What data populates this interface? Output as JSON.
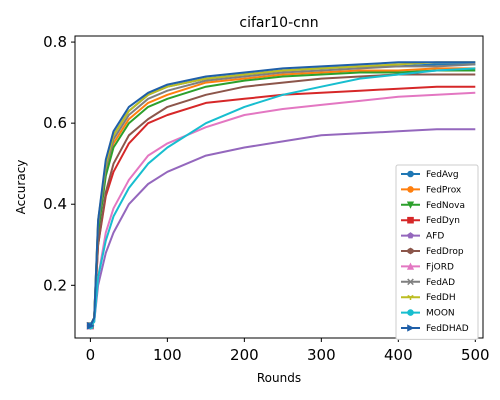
{
  "chart_data": {
    "type": "line",
    "title": "cifar10-cnn",
    "xlabel": "Rounds",
    "ylabel": "Accuracy",
    "xlim": [
      -20,
      510
    ],
    "ylim": [
      0.07,
      0.815
    ],
    "x_ticks": [
      0,
      100,
      200,
      300,
      400,
      500
    ],
    "y_ticks": [
      0.2,
      0.4,
      0.6,
      0.8
    ],
    "grid": false,
    "legend_position": "lower-right",
    "series": [
      {
        "name": "FedAvg",
        "color": "#1f77b4",
        "marker": "circle",
        "x": [
          0,
          5,
          10,
          20,
          30,
          50,
          75,
          100,
          150,
          200,
          250,
          300,
          350,
          400,
          450,
          500
        ],
        "y": [
          0.1,
          0.12,
          0.35,
          0.5,
          0.57,
          0.63,
          0.67,
          0.69,
          0.71,
          0.72,
          0.73,
          0.735,
          0.74,
          0.74,
          0.745,
          0.745
        ]
      },
      {
        "name": "FedProx",
        "color": "#ff7f0e",
        "marker": "circle",
        "x": [
          0,
          5,
          10,
          20,
          30,
          50,
          75,
          100,
          150,
          200,
          250,
          300,
          350,
          400,
          450,
          500
        ],
        "y": [
          0.1,
          0.12,
          0.33,
          0.48,
          0.55,
          0.61,
          0.65,
          0.67,
          0.7,
          0.71,
          0.72,
          0.725,
          0.73,
          0.73,
          0.735,
          0.735
        ]
      },
      {
        "name": "FedNova",
        "color": "#2ca02c",
        "marker": "triangle-down",
        "x": [
          0,
          5,
          10,
          20,
          30,
          50,
          75,
          100,
          150,
          200,
          250,
          300,
          350,
          400,
          450,
          500
        ],
        "y": [
          0.1,
          0.12,
          0.33,
          0.47,
          0.54,
          0.6,
          0.64,
          0.66,
          0.69,
          0.705,
          0.715,
          0.72,
          0.725,
          0.725,
          0.73,
          0.73
        ]
      },
      {
        "name": "FedDyn",
        "color": "#d62728",
        "marker": "square",
        "x": [
          0,
          5,
          10,
          20,
          30,
          50,
          75,
          100,
          150,
          200,
          250,
          300,
          350,
          400,
          450,
          500
        ],
        "y": [
          0.1,
          0.12,
          0.3,
          0.42,
          0.48,
          0.55,
          0.6,
          0.62,
          0.65,
          0.66,
          0.67,
          0.675,
          0.68,
          0.685,
          0.69,
          0.69
        ]
      },
      {
        "name": "AFD",
        "color": "#9467bd",
        "marker": "pentagon",
        "x": [
          0,
          5,
          10,
          20,
          30,
          50,
          75,
          100,
          150,
          200,
          250,
          300,
          350,
          400,
          450,
          500
        ],
        "y": [
          0.1,
          0.11,
          0.2,
          0.28,
          0.33,
          0.4,
          0.45,
          0.48,
          0.52,
          0.54,
          0.555,
          0.57,
          0.575,
          0.58,
          0.585,
          0.585
        ]
      },
      {
        "name": "FedDrop",
        "color": "#8c564b",
        "marker": "hexagon",
        "x": [
          0,
          5,
          10,
          20,
          30,
          50,
          75,
          100,
          150,
          200,
          250,
          300,
          350,
          400,
          450,
          500
        ],
        "y": [
          0.1,
          0.12,
          0.3,
          0.43,
          0.5,
          0.57,
          0.61,
          0.64,
          0.67,
          0.69,
          0.7,
          0.71,
          0.715,
          0.72,
          0.72,
          0.72
        ]
      },
      {
        "name": "FjORD",
        "color": "#e377c2",
        "marker": "triangle-up",
        "x": [
          0,
          5,
          10,
          20,
          30,
          50,
          75,
          100,
          150,
          200,
          250,
          300,
          350,
          400,
          450,
          500
        ],
        "y": [
          0.1,
          0.11,
          0.22,
          0.33,
          0.39,
          0.46,
          0.52,
          0.55,
          0.59,
          0.62,
          0.635,
          0.645,
          0.655,
          0.665,
          0.67,
          0.675
        ]
      },
      {
        "name": "FedAD",
        "color": "#7f7f7f",
        "marker": "x",
        "x": [
          0,
          5,
          10,
          20,
          30,
          50,
          75,
          100,
          150,
          200,
          250,
          300,
          350,
          400,
          450,
          500
        ],
        "y": [
          0.1,
          0.12,
          0.35,
          0.49,
          0.56,
          0.62,
          0.66,
          0.68,
          0.705,
          0.715,
          0.725,
          0.73,
          0.735,
          0.74,
          0.74,
          0.745
        ]
      },
      {
        "name": "FedDH",
        "color": "#bcbd22",
        "marker": "tri",
        "x": [
          0,
          5,
          10,
          20,
          30,
          50,
          75,
          100,
          150,
          200,
          250,
          300,
          350,
          400,
          450,
          500
        ],
        "y": [
          0.1,
          0.12,
          0.36,
          0.5,
          0.57,
          0.63,
          0.67,
          0.69,
          0.71,
          0.72,
          0.73,
          0.735,
          0.74,
          0.745,
          0.75,
          0.75
        ]
      },
      {
        "name": "MOON",
        "color": "#17becf",
        "marker": "circle",
        "x": [
          0,
          5,
          10,
          20,
          30,
          50,
          75,
          100,
          150,
          200,
          250,
          300,
          350,
          400,
          450,
          500
        ],
        "y": [
          0.1,
          0.11,
          0.22,
          0.31,
          0.37,
          0.44,
          0.5,
          0.54,
          0.6,
          0.64,
          0.67,
          0.69,
          0.71,
          0.72,
          0.73,
          0.735
        ]
      },
      {
        "name": "FedDHAD",
        "color": "#1f5fa8",
        "marker": "arrow",
        "x": [
          0,
          5,
          10,
          20,
          30,
          50,
          75,
          100,
          150,
          200,
          250,
          300,
          350,
          400,
          450,
          500
        ],
        "y": [
          0.1,
          0.12,
          0.36,
          0.51,
          0.58,
          0.64,
          0.675,
          0.695,
          0.715,
          0.725,
          0.735,
          0.74,
          0.745,
          0.75,
          0.75,
          0.75
        ]
      }
    ]
  }
}
